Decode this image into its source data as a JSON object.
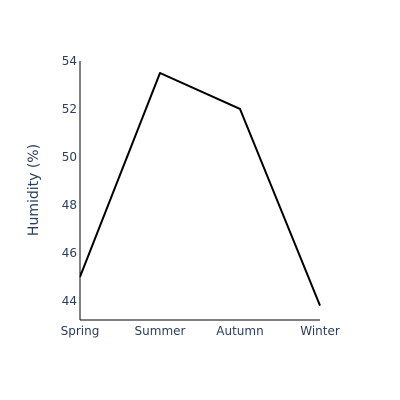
{
  "chart_data": {
    "type": "line",
    "categories": [
      "Spring",
      "Summer",
      "Autumn",
      "Winter"
    ],
    "values": [
      45,
      53.5,
      52,
      43.8
    ],
    "title": "",
    "xlabel": "",
    "ylabel": "Humidity (%)",
    "ylim": [
      43.2,
      54
    ],
    "yticks": [
      44,
      46,
      48,
      50,
      52,
      54
    ],
    "grid": false,
    "legend": "none",
    "line_color": "#000000",
    "text_color": "#2a3f5f"
  }
}
